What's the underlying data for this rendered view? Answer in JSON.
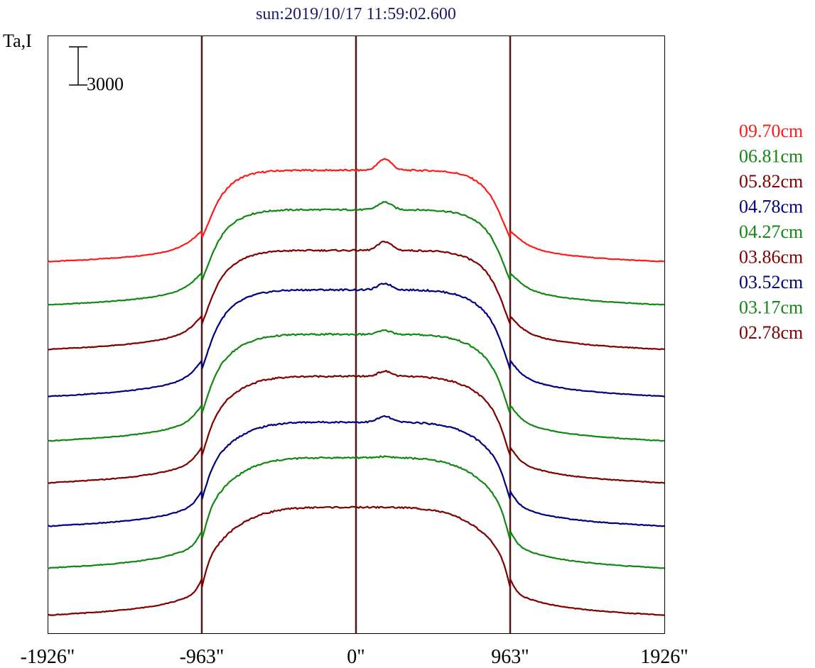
{
  "chart_data": {
    "type": "line",
    "title": "sun:2019/10/17 11:59:02.600",
    "ylabel": "Ta,I",
    "scale_bar_label": "3000",
    "scale_bar_value": 3000,
    "x_ticks": [
      "-1926\"",
      "-963\"",
      "0\"",
      "963\"",
      "1926\""
    ],
    "x_tick_values": [
      -1926,
      -963,
      0,
      963,
      1926
    ],
    "xlim": [
      -1926,
      1926
    ],
    "vertical_lines": [
      -963,
      0,
      963
    ],
    "vertical_line_color": "#501818",
    "legend_position": "right",
    "series": [
      {
        "name": "09.70cm",
        "color": "#ff1a1a",
        "baseline": 29200,
        "disk": 7200,
        "peak": 900
      },
      {
        "name": "06.81cm",
        "color": "#118811",
        "baseline": 25800,
        "disk": 7500,
        "peak": 600
      },
      {
        "name": "05.82cm",
        "color": "#800000",
        "baseline": 22300,
        "disk": 7800,
        "peak": 700
      },
      {
        "name": "04.78cm",
        "color": "#000080",
        "baseline": 18600,
        "disk": 8400,
        "peak": 500
      },
      {
        "name": "04.27cm",
        "color": "#118811",
        "baseline": 15100,
        "disk": 8400,
        "peak": 300
      },
      {
        "name": "03.86cm",
        "color": "#800000",
        "baseline": 11800,
        "disk": 8400,
        "peak": 400
      },
      {
        "name": "03.52cm",
        "color": "#000080",
        "baseline": 8400,
        "disk": 8200,
        "peak": 450
      },
      {
        "name": "03.17cm",
        "color": "#118811",
        "baseline": 5100,
        "disk": 8700,
        "peak": 100
      },
      {
        "name": "02.78cm",
        "color": "#800000",
        "baseline": 1400,
        "disk": 8500,
        "peak": 0
      }
    ],
    "ylim": [
      0,
      47000
    ],
    "grid": false
  }
}
